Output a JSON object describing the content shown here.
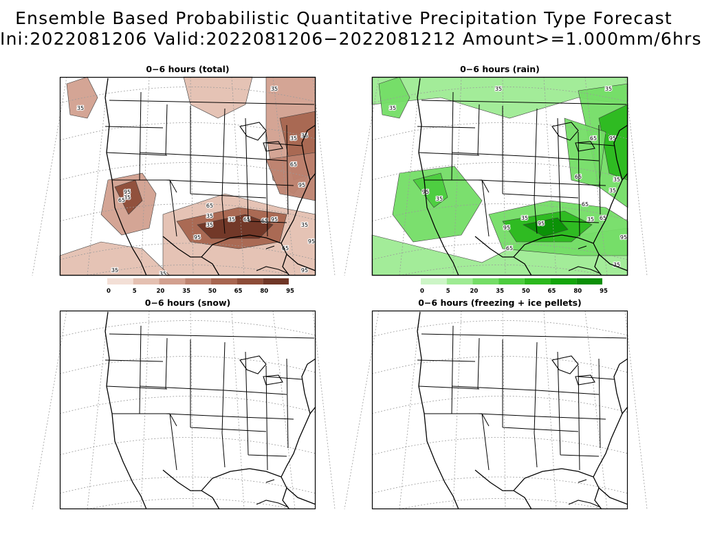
{
  "title_line1": "Ensemble Based Probabilistic Quantitative Precipitation Type Forecast",
  "title_line2": "Ini:2022081206 Valid:2022081206−2022081212 Amount>=1.000mm/6hrs",
  "colors": {
    "total_ramp": [
      "#f3dfd6",
      "#e4c0b1",
      "#d2a08f",
      "#bd826f",
      "#a7654f",
      "#8d4c38",
      "#6f3626"
    ],
    "rain_ramp": [
      "#ccf5c6",
      "#9eeb93",
      "#74dd66",
      "#4ccc3e",
      "#2bb81d",
      "#13a50a",
      "#0a8f06"
    ]
  },
  "panels": [
    {
      "id": "total",
      "title": "0−6 hours (total)"
    },
    {
      "id": "rain",
      "title": "0−6 hours (rain)"
    },
    {
      "id": "snow",
      "title": "0−6 hours (snow)"
    },
    {
      "id": "freezing",
      "title": "0−6 hours (freezing + ice pellets)"
    }
  ],
  "legend_total": {
    "labels": [
      "0",
      "5",
      "20",
      "35",
      "50",
      "65",
      "80",
      "95"
    ]
  },
  "legend_rain": {
    "labels": [
      "0",
      "5",
      "20",
      "35",
      "50",
      "65",
      "80",
      "95"
    ]
  },
  "contour_labels_total": [
    "35",
    "35",
    "35",
    "95",
    "35",
    "95",
    "35",
    "65",
    "35",
    "35",
    "65",
    "95",
    "35",
    "65",
    "95",
    "65",
    "95",
    "95",
    "65",
    "65",
    "35",
    "35",
    "35"
  ],
  "contour_labels_rain": [
    "35",
    "35",
    "35",
    "95",
    "65",
    "35",
    "95",
    "35",
    "65",
    "35",
    "95",
    "95",
    "65",
    "35",
    "35",
    "65",
    "65",
    "95",
    "35"
  ]
}
